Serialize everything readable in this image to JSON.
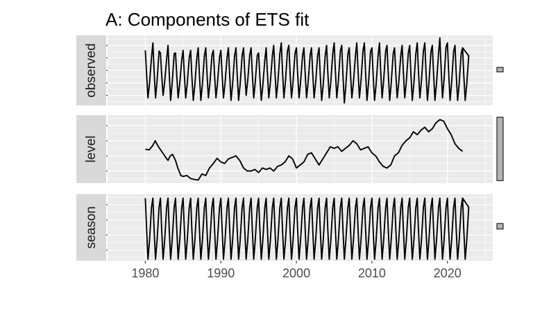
{
  "chart_data": {
    "type": "line",
    "title": "A: Components of ETS fit",
    "x_ticks": [
      1980,
      1990,
      2000,
      2010,
      2020
    ],
    "x_range": [
      1975,
      2026
    ],
    "series_start": 1980.0,
    "series_end": 2022.0,
    "panels": [
      {
        "name": "observed",
        "strip_label": "observed",
        "y_ticks": [
          10,
          15,
          20,
          25,
          30
        ],
        "y_range": [
          6,
          34
        ],
        "scale_bar": [
          19.4,
          21.2
        ],
        "kind": "seasonal",
        "seasonal_peaks": [
          28,
          31,
          27,
          30,
          27,
          28,
          28,
          29,
          29,
          28,
          28,
          29,
          29,
          29,
          29,
          27,
          29,
          30,
          31,
          30,
          29,
          29,
          29,
          29,
          30,
          31,
          30,
          29,
          31,
          31,
          29,
          31,
          30,
          29,
          30,
          30,
          31,
          31,
          30,
          33,
          31,
          30,
          29
        ],
        "seasonal_troughs": [
          9,
          9,
          10,
          8,
          9,
          9,
          8,
          8,
          9,
          9,
          9,
          8,
          8,
          10,
          9,
          8,
          9,
          9,
          9,
          9,
          9,
          9,
          9,
          8,
          9,
          9,
          7,
          9,
          9,
          8,
          8,
          9,
          8,
          9,
          9,
          8,
          9,
          8,
          8,
          9,
          8,
          8,
          8
        ]
      },
      {
        "name": "level",
        "strip_label": "level",
        "y_ticks": [
          21.0,
          21.5,
          22.0,
          22.5
        ],
        "y_range": [
          20.6,
          22.85
        ],
        "scale_bar": [
          20.68,
          22.78
        ],
        "kind": "smooth",
        "points": [
          [
            1980.0,
            21.72
          ],
          [
            1980.5,
            21.7
          ],
          [
            1981.0,
            21.85
          ],
          [
            1981.3,
            22.0
          ],
          [
            1981.7,
            21.82
          ],
          [
            1982.3,
            21.6
          ],
          [
            1982.7,
            21.45
          ],
          [
            1983.0,
            21.35
          ],
          [
            1983.3,
            21.5
          ],
          [
            1983.6,
            21.55
          ],
          [
            1984.0,
            21.35
          ],
          [
            1984.3,
            21.1
          ],
          [
            1984.7,
            20.85
          ],
          [
            1985.0,
            20.82
          ],
          [
            1985.5,
            20.85
          ],
          [
            1986.0,
            20.75
          ],
          [
            1986.5,
            20.72
          ],
          [
            1987.0,
            20.7
          ],
          [
            1987.5,
            20.9
          ],
          [
            1988.0,
            20.85
          ],
          [
            1988.5,
            21.1
          ],
          [
            1989.0,
            21.25
          ],
          [
            1989.5,
            21.42
          ],
          [
            1990.0,
            21.3
          ],
          [
            1990.5,
            21.25
          ],
          [
            1991.0,
            21.4
          ],
          [
            1991.5,
            21.45
          ],
          [
            1992.0,
            21.5
          ],
          [
            1992.5,
            21.35
          ],
          [
            1993.0,
            21.1
          ],
          [
            1993.5,
            21.0
          ],
          [
            1994.0,
            21.0
          ],
          [
            1994.5,
            21.05
          ],
          [
            1995.0,
            20.95
          ],
          [
            1995.5,
            21.1
          ],
          [
            1996.0,
            21.05
          ],
          [
            1996.5,
            21.1
          ],
          [
            1997.0,
            21.0
          ],
          [
            1997.5,
            21.15
          ],
          [
            1998.0,
            21.2
          ],
          [
            1998.5,
            21.3
          ],
          [
            1999.0,
            21.5
          ],
          [
            1999.5,
            21.4
          ],
          [
            2000.0,
            21.1
          ],
          [
            2000.5,
            21.2
          ],
          [
            2001.0,
            21.3
          ],
          [
            2001.5,
            21.55
          ],
          [
            2002.0,
            21.6
          ],
          [
            2002.5,
            21.4
          ],
          [
            2003.0,
            21.2
          ],
          [
            2003.5,
            21.4
          ],
          [
            2004.0,
            21.6
          ],
          [
            2004.5,
            21.8
          ],
          [
            2005.0,
            21.75
          ],
          [
            2005.5,
            21.8
          ],
          [
            2006.0,
            21.65
          ],
          [
            2006.5,
            21.75
          ],
          [
            2007.0,
            21.85
          ],
          [
            2007.5,
            22.0
          ],
          [
            2008.0,
            21.9
          ],
          [
            2008.5,
            21.7
          ],
          [
            2009.0,
            21.75
          ],
          [
            2009.5,
            21.8
          ],
          [
            2010.0,
            21.6
          ],
          [
            2010.5,
            21.5
          ],
          [
            2011.0,
            21.3
          ],
          [
            2011.5,
            21.15
          ],
          [
            2012.0,
            21.1
          ],
          [
            2012.5,
            21.2
          ],
          [
            2013.0,
            21.5
          ],
          [
            2013.5,
            21.6
          ],
          [
            2014.0,
            21.85
          ],
          [
            2014.5,
            22.0
          ],
          [
            2015.0,
            22.1
          ],
          [
            2015.5,
            22.3
          ],
          [
            2016.0,
            22.2
          ],
          [
            2016.5,
            22.35
          ],
          [
            2017.0,
            22.45
          ],
          [
            2017.5,
            22.3
          ],
          [
            2018.0,
            22.4
          ],
          [
            2018.5,
            22.6
          ],
          [
            2019.0,
            22.7
          ],
          [
            2019.5,
            22.65
          ],
          [
            2020.0,
            22.4
          ],
          [
            2020.5,
            22.2
          ],
          [
            2021.0,
            21.9
          ],
          [
            2021.5,
            21.75
          ],
          [
            2022.0,
            21.65
          ]
        ]
      },
      {
        "name": "season",
        "strip_label": "season",
        "y_ticks": [
          -10,
          -5,
          0,
          5
        ],
        "y_range": [
          -13.5,
          8.5
        ],
        "scale_bar": [
          -3.0,
          -1.2
        ],
        "kind": "seasonal",
        "seasonal_peaks": [
          7.2,
          7.2,
          7.2,
          7.2,
          7.2,
          7.2,
          7.2,
          7.2,
          7.2,
          7.2,
          7.2,
          7.2,
          7.2,
          7.2,
          7.2,
          7.2,
          7.2,
          7.2,
          7.2,
          7.2,
          7.2,
          7.2,
          7.2,
          7.2,
          7.2,
          7.2,
          7.2,
          7.2,
          7.2,
          7.2,
          7.2,
          7.2,
          7.2,
          7.2,
          7.2,
          7.2,
          7.2,
          7.2,
          7.2,
          7.2,
          7.2,
          7.2,
          7.2
        ],
        "seasonal_troughs": [
          -13,
          -13,
          -13,
          -13,
          -13,
          -13,
          -13,
          -13,
          -13,
          -13,
          -13,
          -13,
          -13,
          -13,
          -13,
          -13,
          -13,
          -13,
          -13,
          -13,
          -13,
          -13,
          -13,
          -13,
          -13,
          -13,
          -13,
          -13,
          -13,
          -13,
          -13,
          -13,
          -13,
          -13,
          -13,
          -13,
          -13,
          -13,
          -13,
          -13,
          -13,
          -13,
          -13
        ]
      }
    ]
  },
  "colors": {
    "panel_bg": "#ebebeb",
    "grid": "#ffffff",
    "strip_bg": "#d9d9d9",
    "line": "#000000",
    "scale_bar_fill": "#b3b3b3"
  }
}
